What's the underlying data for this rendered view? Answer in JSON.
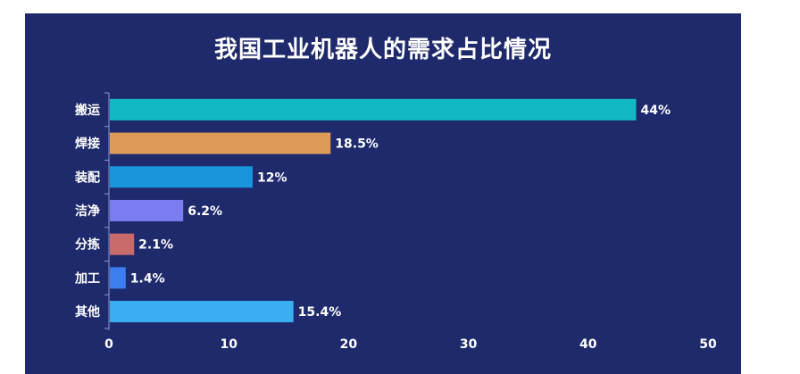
{
  "chart_data": {
    "type": "bar",
    "orientation": "horizontal",
    "title": "我国工业机器人的需求占比情况",
    "xlabel": "",
    "ylabel": "",
    "categories": [
      "搬运",
      "焊接",
      "装配",
      "洁净",
      "分拣",
      "加工",
      "其他"
    ],
    "values": [
      44,
      18.5,
      12,
      6.2,
      2.1,
      1.4,
      15.4
    ],
    "value_labels": [
      "44%",
      "18.5%",
      "12%",
      "6.2%",
      "2.1%",
      "1.4%",
      "15.4%"
    ],
    "colors": [
      "#12b8c4",
      "#dd9b5a",
      "#1a94dc",
      "#7b7cf0",
      "#c96b6b",
      "#3d7ff0",
      "#3aaef0"
    ],
    "xlim": [
      0,
      50
    ],
    "xticks": [
      0,
      10,
      20,
      30,
      40,
      50
    ],
    "grid": false,
    "legend": "none"
  },
  "style": {
    "background": "#1f2a6c",
    "axis_color": "#8e9ad0",
    "text_color": "#ffffff"
  }
}
